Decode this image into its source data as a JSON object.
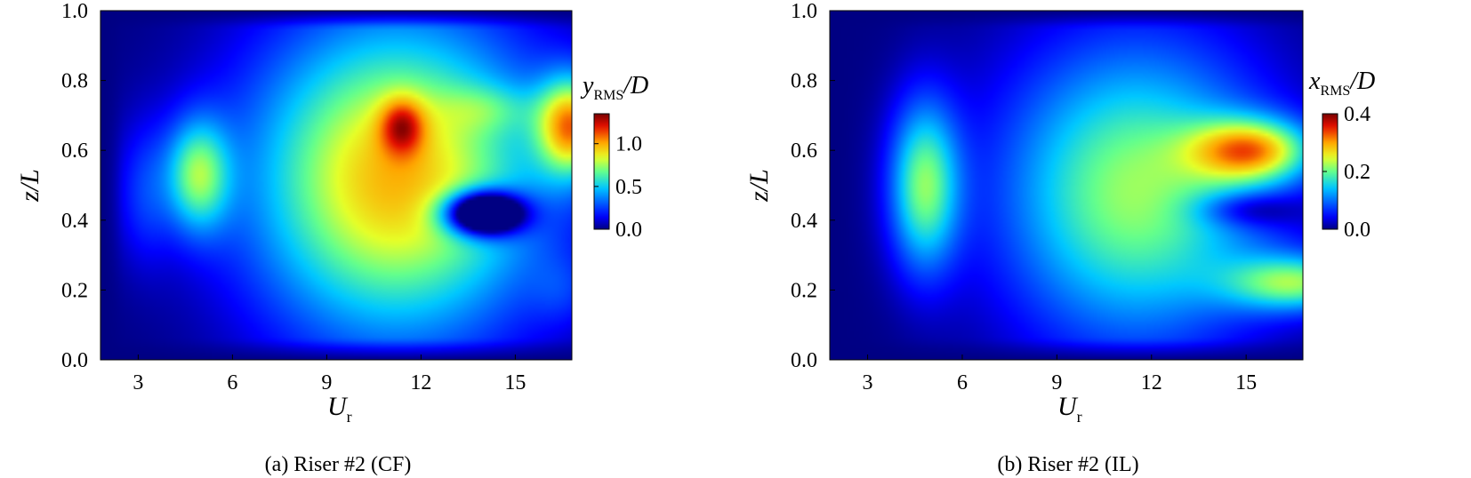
{
  "chart_data": [
    {
      "type": "heatmap",
      "caption": "(a) Riser #2 (CF)",
      "xlabel": "U",
      "xlabel_sub": "r",
      "ylabel": "z/L",
      "xlim": [
        1.8,
        16.8
      ],
      "ylim": [
        0.0,
        1.0
      ],
      "xticks": [
        "3",
        "6",
        "9",
        "12",
        "15"
      ],
      "yticks": [
        "0.0",
        "0.2",
        "0.4",
        "0.6",
        "0.8",
        "1.0"
      ],
      "colorbar": {
        "title_main": "y",
        "title_sub": "RMS",
        "title_tail": "/D",
        "range": [
          0.0,
          1.35
        ],
        "ticks": [
          "0.0",
          "0.5",
          "1.0"
        ]
      },
      "features": [
        {
          "x": 4.9,
          "y": 0.53,
          "sx": 1.0,
          "sy": 0.16,
          "v": 0.62
        },
        {
          "x": 3.2,
          "y": 0.48,
          "sx": 0.9,
          "sy": 0.2,
          "v": 0.2
        },
        {
          "x": 11.2,
          "y": 0.52,
          "sx": 4.6,
          "sy": 0.45,
          "v": 0.98
        },
        {
          "x": 11.4,
          "y": 0.67,
          "sx": 0.7,
          "sy": 0.08,
          "v": 0.45
        },
        {
          "x": 14.0,
          "y": 0.42,
          "sx": 1.2,
          "sy": 0.06,
          "v": -1.25
        },
        {
          "x": 14.2,
          "y": 0.72,
          "sx": 1.5,
          "sy": 0.07,
          "v": 0.18
        },
        {
          "x": 16.8,
          "y": 0.67,
          "sx": 1.1,
          "sy": 0.14,
          "v": 0.9
        },
        {
          "x": 16.5,
          "y": 0.2,
          "sx": 1.0,
          "sy": 0.1,
          "v": 0.12
        }
      ]
    },
    {
      "type": "heatmap",
      "caption": "(b) Riser #2 (IL)",
      "xlabel": "U",
      "xlabel_sub": "r",
      "ylabel": "z/L",
      "xlim": [
        1.8,
        16.8
      ],
      "ylim": [
        0.0,
        1.0
      ],
      "xticks": [
        "3",
        "6",
        "9",
        "12",
        "15"
      ],
      "yticks": [
        "0.0",
        "0.2",
        "0.4",
        "0.6",
        "0.8",
        "1.0"
      ],
      "colorbar": {
        "title_main": "x",
        "title_sub": "RMS",
        "title_tail": "/D",
        "range": [
          0.0,
          0.4
        ],
        "ticks": [
          "0.0",
          "0.2",
          "0.4"
        ]
      },
      "features": [
        {
          "x": 4.8,
          "y": 0.5,
          "sx": 1.1,
          "sy": 0.24,
          "v": 0.2
        },
        {
          "x": 11.5,
          "y": 0.48,
          "sx": 4.2,
          "sy": 0.42,
          "v": 0.22
        },
        {
          "x": 15.2,
          "y": 0.6,
          "sx": 1.9,
          "sy": 0.09,
          "v": 0.24
        },
        {
          "x": 16.6,
          "y": 0.22,
          "sx": 2.2,
          "sy": 0.08,
          "v": 0.19
        },
        {
          "x": 15.0,
          "y": 0.43,
          "sx": 1.6,
          "sy": 0.05,
          "v": -0.08
        }
      ]
    }
  ]
}
